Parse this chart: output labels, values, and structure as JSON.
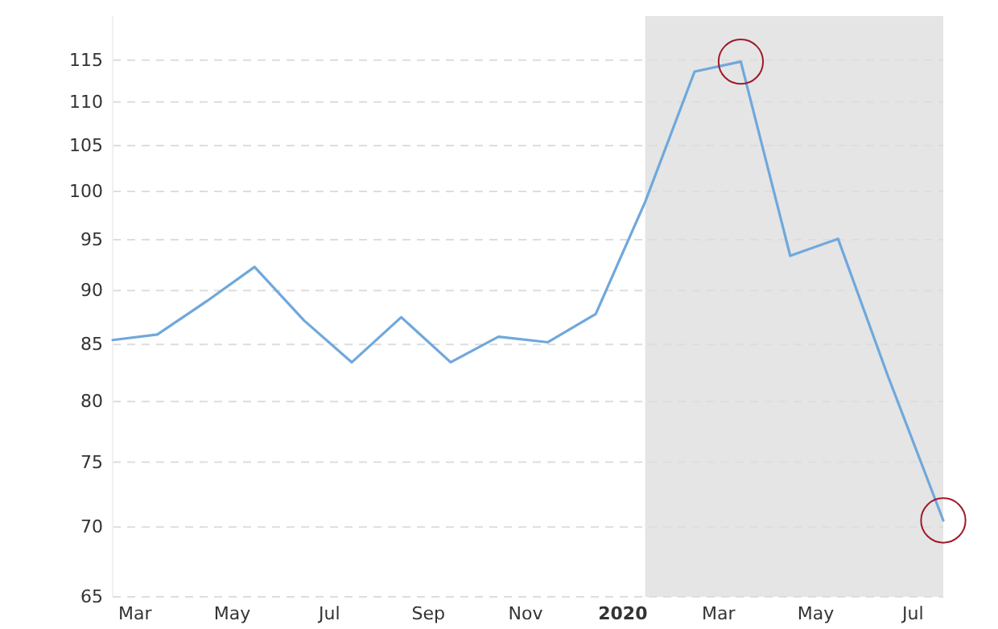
{
  "chart_data": {
    "type": "line",
    "log": "y",
    "grid": "y",
    "line_style": "solid",
    "x": [
      "2019-02-15",
      "2019-03-15",
      "2019-04-15",
      "2019-05-15",
      "2019-06-15",
      "2019-07-15",
      "2019-08-15",
      "2019-09-15",
      "2019-10-15",
      "2019-11-15",
      "2019-12-15",
      "2020-01-15",
      "2020-02-15",
      "2020-03-15",
      "2020-04-15",
      "2020-05-15",
      "2020-06-15",
      "2020-07-20"
    ],
    "series": [
      {
        "color": "#6fa8dc",
        "marker": "none",
        "values": [
          85.4,
          85.9,
          89.0,
          92.3,
          87.2,
          83.4,
          87.5,
          83.4,
          85.7,
          85.2,
          87.8,
          98.9,
          113.6,
          114.8,
          93.4,
          95.1,
          82.3,
          70.5
        ]
      },
      {
        "type": "scatter",
        "marker": "circle",
        "color": "#a0182a",
        "x": [
          "2020-03-15",
          "2020-07-20"
        ],
        "values": [
          114.8,
          70.5
        ]
      }
    ],
    "xlim": [
      "2019-02-15",
      "2020-07-20"
    ],
    "xticks": [
      {
        "value": "2019-03-01",
        "label": "Mar"
      },
      {
        "value": "2019-05-01",
        "label": "May"
      },
      {
        "value": "2019-07-01",
        "label": "Jul"
      },
      {
        "value": "2019-09-01",
        "label": "Sep"
      },
      {
        "value": "2019-11-01",
        "label": "Nov"
      },
      {
        "value": "2020-01-01",
        "label": "2020"
      },
      {
        "value": "2020-03-01",
        "label": "Mar"
      },
      {
        "value": "2020-05-01",
        "label": "May"
      },
      {
        "value": "2020-07-01",
        "label": "Jul"
      }
    ],
    "ylim": [
      65,
      120.5
    ],
    "yticks": [
      65,
      70,
      75,
      80,
      85,
      90,
      95,
      100,
      105,
      110,
      115
    ],
    "bands": [
      {
        "axis": "x",
        "from": "2020-01-15",
        "to": "2020-07-20",
        "color": "#e5e5e5"
      }
    ]
  }
}
